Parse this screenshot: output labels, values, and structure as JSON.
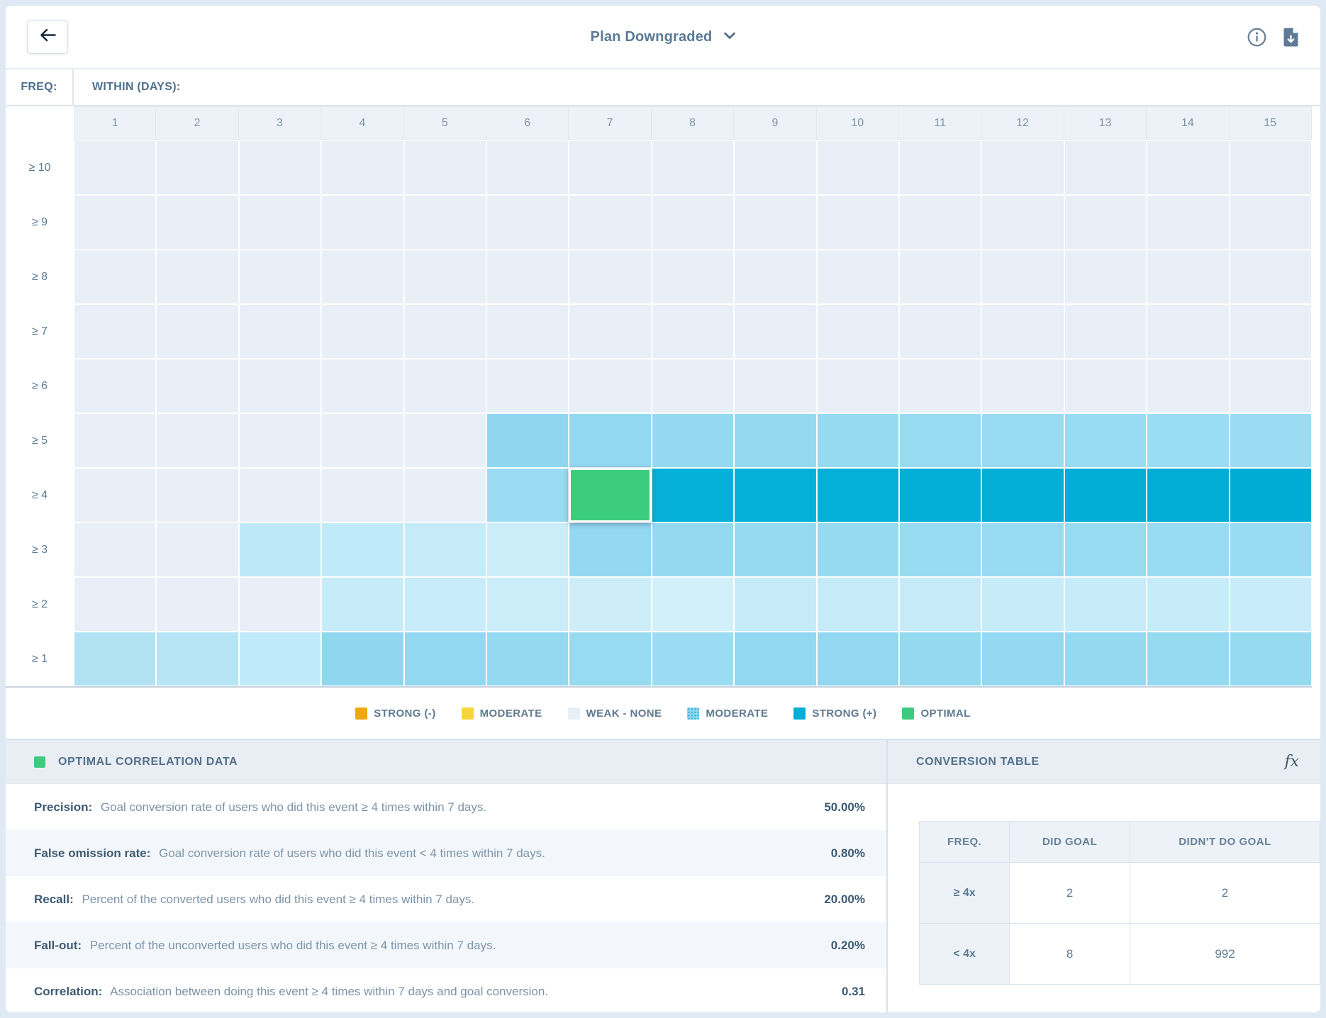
{
  "topbar": {
    "title": "Plan Downgraded"
  },
  "heatmap": {
    "freq_label": "FREQ:",
    "within_label": "WITHIN (DAYS):",
    "columns": [
      "1",
      "2",
      "3",
      "4",
      "5",
      "6",
      "7",
      "8",
      "9",
      "10",
      "11",
      "12",
      "13",
      "14",
      "15"
    ],
    "rows": [
      "≥ 10",
      "≥ 9",
      "≥ 8",
      "≥ 7",
      "≥ 6",
      "≥ 5",
      "≥ 4",
      "≥ 3",
      "≥ 2",
      "≥ 1"
    ],
    "optimal": {
      "row_index": 6,
      "col_index": 6
    }
  },
  "legend": [
    {
      "label": "STRONG (-)",
      "color": "#F0A80D",
      "pattern": "solid"
    },
    {
      "label": "MODERATE",
      "color": "#F6D53A",
      "pattern": "solid"
    },
    {
      "label": "WEAK - NONE",
      "color": "#E9EFF7",
      "pattern": "solid"
    },
    {
      "label": "MODERATE",
      "color": "#8ED6EE",
      "pattern": "dots"
    },
    {
      "label": "STRONG (+)",
      "color": "#04AFD7",
      "pattern": "solid"
    },
    {
      "label": "OPTIMAL",
      "color": "#3DCB80",
      "pattern": "solid"
    }
  ],
  "chart_data": {
    "type": "heatmap",
    "title": "Plan Downgraded",
    "xlabel": "WITHIN (DAYS):",
    "ylabel": "FREQ:",
    "x": [
      "1",
      "2",
      "3",
      "4",
      "5",
      "6",
      "7",
      "8",
      "9",
      "10",
      "11",
      "12",
      "13",
      "14",
      "15"
    ],
    "y": [
      "≥ 10",
      "≥ 9",
      "≥ 8",
      "≥ 7",
      "≥ 6",
      "≥ 5",
      "≥ 4",
      "≥ 3",
      "≥ 2",
      "≥ 1"
    ],
    "legend_levels": [
      "STRONG (-)",
      "MODERATE",
      "WEAK - NONE",
      "MODERATE",
      "STRONG (+)",
      "OPTIMAL"
    ],
    "optimal_cell": {
      "freq": "≥ 4",
      "day": 7
    },
    "cell_colors": [
      [
        "#E9EFF7",
        "#E9EFF7",
        "#E9EFF7",
        "#E9EFF7",
        "#E9EFF7",
        "#E9EFF7",
        "#E9EFF7",
        "#E9EFF7",
        "#E9EFF7",
        "#E9EFF7",
        "#E9EFF7",
        "#E9EFF7",
        "#E9EFF7",
        "#E9EFF7",
        "#E9EFF7"
      ],
      [
        "#E9EFF7",
        "#E9EFF7",
        "#E9EFF7",
        "#E9EFF7",
        "#E9EFF7",
        "#E9EFF7",
        "#E9EFF7",
        "#E9EFF7",
        "#E9EFF7",
        "#E9EFF7",
        "#E9EFF7",
        "#E9EFF7",
        "#E9EFF7",
        "#E9EFF7",
        "#E9EFF7"
      ],
      [
        "#E9EFF7",
        "#E9EFF7",
        "#E9EFF7",
        "#E9EFF7",
        "#E9EFF7",
        "#E9EFF7",
        "#E9EFF7",
        "#E9EFF7",
        "#E9EFF7",
        "#E9EFF7",
        "#E9EFF7",
        "#E9EFF7",
        "#E9EFF7",
        "#E9EFF7",
        "#E9EFF7"
      ],
      [
        "#E9EFF7",
        "#E9EFF7",
        "#E9EFF7",
        "#E9EFF7",
        "#E9EFF7",
        "#E9EFF7",
        "#E9EFF7",
        "#E9EFF7",
        "#E9EFF7",
        "#E9EFF7",
        "#E9EFF7",
        "#E9EFF7",
        "#E9EFF7",
        "#E9EFF7",
        "#E9EFF7"
      ],
      [
        "#E9EFF7",
        "#E9EFF7",
        "#E9EFF7",
        "#E9EFF7",
        "#E9EFF7",
        "#E9EFF7",
        "#E9EFF7",
        "#E9EFF7",
        "#E9EFF7",
        "#E9EFF7",
        "#E9EFF7",
        "#E9EFF7",
        "#E9EFF7",
        "#E9EFF7",
        "#E9EFF7"
      ],
      [
        "#E9EFF7",
        "#E9EFF7",
        "#E9EFF7",
        "#E9EFF7",
        "#E9EFF7",
        "#8FD7F0",
        "#92D8F0",
        "#94D9F1",
        "#95D9F1",
        "#96DAF1",
        "#97DAF1",
        "#98DBF1",
        "#99DBF2",
        "#9ADCF2",
        "#9BDCF2"
      ],
      [
        "#E9EFF7",
        "#E9EFF7",
        "#E9EFF7",
        "#E9EFF7",
        "#E9EFF7",
        "#9BDCF2",
        "#3DCB80",
        "#06B1D9",
        "#05B0D8",
        "#04B0D8",
        "#04AFD7",
        "#03AED7",
        "#02ADD6",
        "#01ACD5",
        "#00ABD4"
      ],
      [
        "#E9EFF7",
        "#E9EFF7",
        "#BEE8F7",
        "#C1EAF8",
        "#C5EBF8",
        "#CAEDF9",
        "#93D8F0",
        "#95D9F1",
        "#96DAF1",
        "#96DAF1",
        "#97DAF1",
        "#97DAF1",
        "#98DBF1",
        "#99DBF2",
        "#99DBF2"
      ],
      [
        "#E9EFF7",
        "#E9EFF7",
        "#E9EFF7",
        "#C7ECF9",
        "#C8ECF9",
        "#CAEDF9",
        "#CDEEF9",
        "#D2F0FA",
        "#C5EBF8",
        "#C5EBF8",
        "#C6EBF8",
        "#C6ECF9",
        "#C7ECF9",
        "#C7ECF9",
        "#C8ECF9"
      ],
      [
        "#B2E3F5",
        "#B6E5F6",
        "#C1EAF8",
        "#8FD6EE",
        "#92D8F0",
        "#95D9F1",
        "#98DBF1",
        "#9BDCF2",
        "#92D8F0",
        "#93D8F0",
        "#94D9F0",
        "#94D9F1",
        "#95D9F1",
        "#95DAF1",
        "#96DAF1"
      ]
    ]
  },
  "correlation_panel": {
    "title": "OPTIMAL CORRELATION DATA",
    "metrics": [
      {
        "name": "Precision:",
        "description": "Goal conversion rate of users who did this event ≥ 4 times within 7 days.",
        "value": "50.00%"
      },
      {
        "name": "False omission rate:",
        "description": "Goal conversion rate of users who did this event < 4 times within 7 days.",
        "value": "0.80%"
      },
      {
        "name": "Recall:",
        "description": "Percent of the converted users who did this event ≥ 4 times within 7 days.",
        "value": "20.00%"
      },
      {
        "name": "Fall-out:",
        "description": "Percent of the unconverted users who did this event ≥ 4 times within 7 days.",
        "value": "0.20%"
      },
      {
        "name": "Correlation:",
        "description": "Association between doing this event ≥ 4 times within 7 days and goal conversion.",
        "value": "0.31"
      }
    ]
  },
  "conversion_panel": {
    "title": "CONVERSION TABLE",
    "fx_label": "fx",
    "table": {
      "headers": [
        "FREQ.",
        "DID GOAL",
        "DIDN'T DO GOAL"
      ],
      "rows": [
        [
          "≥ 4x",
          "2",
          "2"
        ],
        [
          "< 4x",
          "8",
          "992"
        ]
      ]
    }
  }
}
